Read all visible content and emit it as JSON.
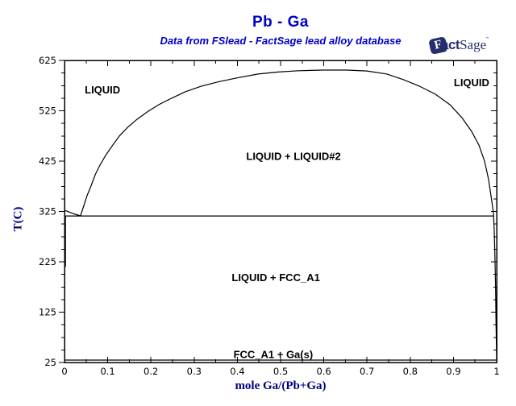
{
  "header": {
    "title": "Pb - Ga",
    "subtitle": "Data from FSlead - FactSage lead alloy database"
  },
  "logo": {
    "f_letter": "F",
    "act": "act",
    "sage": "Sage",
    "tm": "”",
    "color": "#262f6c"
  },
  "chart_data": {
    "type": "line",
    "title": "Pb - Ga",
    "subtitle": "Data from FSlead - FactSage lead alloy database",
    "xlabel": "mole Ga/(Pb+Ga)",
    "ylabel": "T(C)",
    "xlim": [
      0,
      1
    ],
    "ylim": [
      25,
      625
    ],
    "grid": false,
    "legend": false,
    "x_major_ticks": [
      0,
      0.1,
      0.2,
      0.3,
      0.4,
      0.5,
      0.6,
      0.7,
      0.8,
      0.9,
      1
    ],
    "x_tick_labels": [
      "0",
      "0.1",
      "0.2",
      "0.3",
      "0.4",
      "0.5",
      "0.6",
      "0.7",
      "0.8",
      "0.9",
      "1"
    ],
    "x_minor_ticks": [
      0.05,
      0.15,
      0.25,
      0.35,
      0.45,
      0.55,
      0.65,
      0.75,
      0.85,
      0.95
    ],
    "y_major_ticks": [
      25,
      125,
      225,
      325,
      425,
      525,
      625
    ],
    "y_tick_labels": [
      "25",
      "125",
      "225",
      "325",
      "425",
      "525",
      "625"
    ],
    "y_minor_ticks": [
      50,
      75,
      100,
      150,
      175,
      200,
      250,
      275,
      300,
      350,
      375,
      400,
      450,
      475,
      500,
      550,
      575,
      600
    ],
    "series": [
      {
        "name": "liquidus-miscibility-gap",
        "width": 1.2,
        "points": [
          [
            0.0,
            327.4
          ],
          [
            0.01,
            324.0
          ],
          [
            0.022,
            320.2
          ],
          [
            0.037,
            316.2
          ],
          [
            0.045,
            337
          ],
          [
            0.052,
            356
          ],
          [
            0.062,
            377
          ],
          [
            0.071,
            398
          ],
          [
            0.082,
            417
          ],
          [
            0.095,
            436
          ],
          [
            0.11,
            455
          ],
          [
            0.127,
            475
          ],
          [
            0.146,
            492
          ],
          [
            0.168,
            508
          ],
          [
            0.192,
            523
          ],
          [
            0.218,
            537
          ],
          [
            0.248,
            550
          ],
          [
            0.28,
            563
          ],
          [
            0.317,
            574
          ],
          [
            0.358,
            583
          ],
          [
            0.403,
            591
          ],
          [
            0.448,
            598
          ],
          [
            0.494,
            602
          ],
          [
            0.541,
            604.5
          ],
          [
            0.597,
            605.8
          ],
          [
            0.653,
            605.8
          ],
          [
            0.7,
            604
          ],
          [
            0.746,
            598
          ],
          [
            0.784,
            587
          ],
          [
            0.821,
            574
          ],
          [
            0.858,
            558
          ],
          [
            0.892,
            537
          ],
          [
            0.92,
            511
          ],
          [
            0.942,
            484
          ],
          [
            0.959,
            457
          ],
          [
            0.972,
            425
          ],
          [
            0.981,
            390
          ],
          [
            0.987,
            356
          ],
          [
            0.991,
            332
          ],
          [
            0.993,
            318
          ]
        ]
      },
      {
        "name": "liquidus-ga-rich",
        "width": 1.2,
        "points": [
          [
            0.993,
            318
          ],
          [
            0.9945,
            281
          ],
          [
            0.996,
            233
          ],
          [
            0.9975,
            169
          ],
          [
            0.9985,
            105
          ],
          [
            0.9995,
            60
          ],
          [
            1.0,
            29.8
          ]
        ]
      },
      {
        "name": "monotectic-line",
        "width": 1.3,
        "points": [
          [
            0,
            316
          ],
          [
            0.993,
            316
          ]
        ]
      },
      {
        "name": "eutectic-line",
        "width": 1.3,
        "points": [
          [
            0,
            29.8
          ],
          [
            1,
            29.8
          ]
        ]
      },
      {
        "name": "fcc-a1-solvus",
        "width": 2,
        "points": [
          [
            0.0015,
            316
          ],
          [
            0.0015,
            215
          ]
        ]
      }
    ],
    "regions": [
      {
        "label": "LIQUID",
        "x": 0.088,
        "T": 566
      },
      {
        "label": "LIQUID",
        "x": 0.942,
        "T": 580
      },
      {
        "label": "LIQUID + LIQUID#2",
        "x": 0.53,
        "T": 434
      },
      {
        "label": "LIQUID + FCC_A1",
        "x": 0.489,
        "T": 193
      },
      {
        "label": "FCC_A1 + Ga(s)",
        "x": 0.483,
        "T": 40
      }
    ]
  }
}
